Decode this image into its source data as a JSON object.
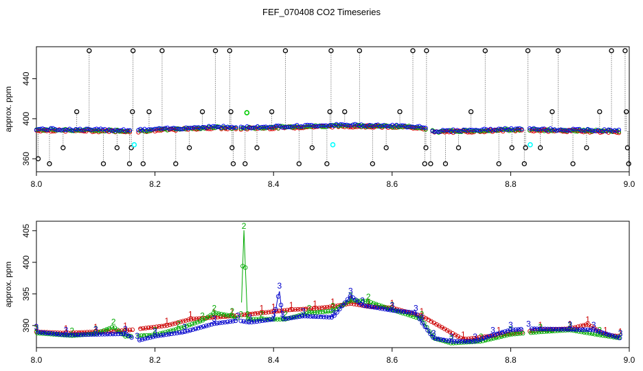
{
  "title": "FEF_070408  CO2 Timeseries",
  "chart_data": [
    {
      "type": "scatter",
      "ylabel": "approx. ppm",
      "xlim": [
        8.0,
        9.0
      ],
      "ylim": [
        347,
        472
      ],
      "x_ticks": [
        8.0,
        8.2,
        8.4,
        8.6,
        8.8,
        9.0
      ],
      "x_tick_labels": [
        "8.0",
        "8.2",
        "8.4",
        "8.6",
        "8.8",
        "9.0"
      ],
      "y_ticks": [
        360,
        400,
        440
      ],
      "y_tick_labels": [
        "360",
        "400",
        "440"
      ],
      "grid": false,
      "series": [
        {
          "color": "#0000ff",
          "marker": "circle",
          "baseline": [
            [
              8.0,
              389
            ],
            [
              8.16,
              388
            ],
            [
              8.17,
              388
            ],
            [
              8.3,
              391.5
            ],
            [
              8.34,
              390.5
            ],
            [
              8.5,
              393
            ],
            [
              8.55,
              393
            ],
            [
              8.65,
              391.5
            ],
            [
              8.67,
              387
            ],
            [
              8.8,
              389
            ],
            [
              8.83,
              389
            ],
            [
              8.98,
              387.5
            ]
          ]
        },
        {
          "color": "#000000",
          "marker": "circle-dotted-line",
          "outliers": [
            [
              8.003,
              360
            ],
            [
              8.022,
              355
            ],
            [
              8.045,
              371
            ],
            [
              8.068,
              407
            ],
            [
              8.089,
              468
            ],
            [
              8.113,
              355
            ],
            [
              8.136,
              371
            ],
            [
              8.157,
              355
            ],
            [
              8.162,
              407
            ],
            [
              8.163,
              468
            ],
            [
              8.16,
              371
            ],
            [
              8.18,
              355
            ],
            [
              8.19,
              407
            ],
            [
              8.212,
              468
            ],
            [
              8.235,
              355
            ],
            [
              8.258,
              371
            ],
            [
              8.28,
              407
            ],
            [
              8.302,
              468
            ],
            [
              8.326,
              468
            ],
            [
              8.328,
              407
            ],
            [
              8.33,
              371
            ],
            [
              8.332,
              355
            ],
            [
              8.352,
              355
            ],
            [
              8.372,
              371
            ],
            [
              8.397,
              407
            ],
            [
              8.42,
              468
            ],
            [
              8.443,
              355
            ],
            [
              8.465,
              371
            ],
            [
              8.49,
              355
            ],
            [
              8.495,
              407
            ],
            [
              8.497,
              468
            ],
            [
              8.52,
              407
            ],
            [
              8.545,
              468
            ],
            [
              8.567,
              355
            ],
            [
              8.59,
              371
            ],
            [
              8.613,
              407
            ],
            [
              8.635,
              468
            ],
            [
              8.655,
              355
            ],
            [
              8.657,
              371
            ],
            [
              8.658,
              468
            ],
            [
              8.665,
              355
            ],
            [
              8.69,
              355
            ],
            [
              8.712,
              371
            ],
            [
              8.733,
              407
            ],
            [
              8.757,
              468
            ],
            [
              8.78,
              355
            ],
            [
              8.802,
              371
            ],
            [
              8.823,
              355
            ],
            [
              8.825,
              371
            ],
            [
              8.829,
              468
            ],
            [
              8.85,
              371
            ],
            [
              8.87,
              407
            ],
            [
              8.88,
              468
            ],
            [
              8.905,
              355
            ],
            [
              8.928,
              371
            ],
            [
              8.95,
              407
            ],
            [
              8.97,
              468
            ],
            [
              8.993,
              468
            ],
            [
              8.995,
              407
            ],
            [
              8.997,
              371
            ],
            [
              8.999,
              355
            ]
          ]
        },
        {
          "color": "#00ffff",
          "marker": "circle",
          "points": [
            [
              8.165,
              374
            ],
            [
              8.5,
              374
            ],
            [
              8.833,
              374
            ]
          ]
        },
        {
          "color": "#00cc00",
          "marker": "circle",
          "points": [
            [
              8.355,
              406
            ]
          ]
        }
      ]
    },
    {
      "type": "line",
      "ylabel": "approx. ppm",
      "xlim": [
        8.0,
        9.0
      ],
      "ylim": [
        386.5,
        406.5
      ],
      "x_ticks": [
        8.0,
        8.2,
        8.4,
        8.6,
        8.8,
        9.0
      ],
      "x_tick_labels": [
        "8.0",
        "8.2",
        "8.4",
        "8.6",
        "8.8",
        "9.0"
      ],
      "y_ticks": [
        390,
        395,
        400,
        405
      ],
      "y_tick_labels": [
        "390",
        "395",
        "400",
        "405"
      ],
      "grid": false,
      "series": [
        {
          "name": "1",
          "color": "#cc0000",
          "marker": "1",
          "values": [
            [
              8.0,
              389
            ],
            [
              8.05,
              388.8
            ],
            [
              8.1,
              389
            ],
            [
              8.15,
              389.2
            ],
            [
              8.22,
              390
            ],
            [
              8.26,
              391
            ],
            [
              8.3,
              391.3
            ],
            [
              8.33,
              391.5
            ],
            [
              8.38,
              392
            ],
            [
              8.4,
              392.2
            ],
            [
              8.43,
              392.5
            ],
            [
              8.47,
              392.7
            ],
            [
              8.5,
              393
            ],
            [
              8.53,
              393.5
            ],
            [
              8.56,
              393
            ],
            [
              8.6,
              392.8
            ],
            [
              8.65,
              391.5
            ],
            [
              8.72,
              387.8
            ],
            [
              8.78,
              388.5
            ],
            [
              8.85,
              389.3
            ],
            [
              8.9,
              389.5
            ],
            [
              8.93,
              390.2
            ],
            [
              8.96,
              388.5
            ],
            [
              8.985,
              388.3
            ]
          ]
        },
        {
          "name": "2",
          "color": "#00aa00",
          "marker": "2",
          "values": [
            [
              8.0,
              388.8
            ],
            [
              8.06,
              388.4
            ],
            [
              8.1,
              388.7
            ],
            [
              8.13,
              389.8
            ],
            [
              8.15,
              388.3
            ],
            [
              8.2,
              388.5
            ],
            [
              8.24,
              389.5
            ],
            [
              8.28,
              390.8
            ],
            [
              8.3,
              392
            ],
            [
              8.33,
              391.5
            ],
            [
              8.345,
              391
            ],
            [
              8.35,
              405
            ],
            [
              8.356,
              391
            ],
            [
              8.38,
              391
            ],
            [
              8.42,
              391
            ],
            [
              8.46,
              392
            ],
            [
              8.5,
              392.3
            ],
            [
              8.53,
              394
            ],
            [
              8.56,
              393.8
            ],
            [
              8.6,
              392.5
            ],
            [
              8.65,
              391
            ],
            [
              8.67,
              388
            ],
            [
              8.7,
              387.2
            ],
            [
              8.75,
              387.5
            ],
            [
              8.8,
              388.6
            ],
            [
              8.85,
              389
            ],
            [
              8.9,
              389.3
            ],
            [
              8.95,
              388.5
            ],
            [
              8.985,
              388
            ]
          ]
        },
        {
          "name": "3",
          "color": "#0000cc",
          "marker": "3",
          "values": [
            [
              8.0,
              389
            ],
            [
              8.05,
              388.5
            ],
            [
              8.1,
              388.6
            ],
            [
              8.15,
              388.7
            ],
            [
              8.17,
              387.6
            ],
            [
              8.2,
              388.3
            ],
            [
              8.25,
              389
            ],
            [
              8.3,
              390.3
            ],
            [
              8.34,
              390.8
            ],
            [
              8.36,
              390.5
            ],
            [
              8.4,
              391
            ],
            [
              8.41,
              395.5
            ],
            [
              8.415,
              391
            ],
            [
              8.45,
              391.5
            ],
            [
              8.5,
              391.3
            ],
            [
              8.53,
              394.7
            ],
            [
              8.55,
              393.2
            ],
            [
              8.6,
              392.4
            ],
            [
              8.64,
              392
            ],
            [
              8.65,
              390.5
            ],
            [
              8.67,
              388
            ],
            [
              8.7,
              387.5
            ],
            [
              8.74,
              387.5
            ],
            [
              8.77,
              388.5
            ],
            [
              8.8,
              389.3
            ],
            [
              8.83,
              389.5
            ],
            [
              8.9,
              389.4
            ],
            [
              8.94,
              389.3
            ],
            [
              8.985,
              388
            ]
          ]
        }
      ]
    }
  ]
}
